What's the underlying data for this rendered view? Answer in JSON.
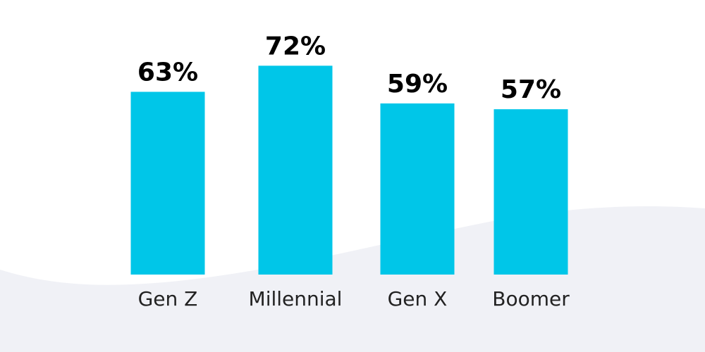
{
  "colors": {
    "background": "#ffffff",
    "wave": "#f0f1f6",
    "bar": "#00c6e8"
  },
  "chart_data": {
    "type": "bar",
    "categories": [
      "Gen Z",
      "Millennial",
      "Gen X",
      "Boomer"
    ],
    "values": [
      63,
      72,
      59,
      57
    ],
    "value_labels": [
      "63%",
      "72%",
      "59%",
      "57%"
    ],
    "title": "",
    "xlabel": "",
    "ylabel": "",
    "ylim": [
      0,
      100
    ],
    "grid": false,
    "legend": "none"
  }
}
